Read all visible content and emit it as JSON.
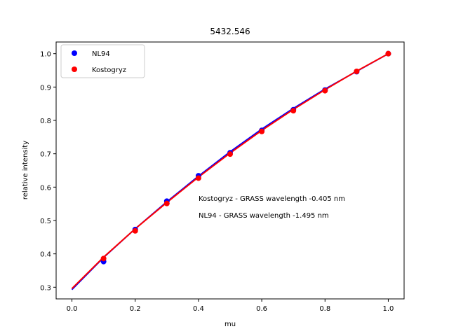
{
  "chart_data": {
    "type": "scatter",
    "title": "5432.546",
    "xlabel": "mu",
    "ylabel": "relative intensity",
    "xlim": [
      -0.05,
      1.05
    ],
    "ylim": [
      0.265,
      1.035
    ],
    "xticks": [
      0.0,
      0.2,
      0.4,
      0.6,
      0.8,
      1.0
    ],
    "xtick_labels": [
      "0.0",
      "0.2",
      "0.4",
      "0.6",
      "0.8",
      "1.0"
    ],
    "yticks": [
      0.3,
      0.4,
      0.5,
      0.6,
      0.7,
      0.8,
      0.9,
      1.0
    ],
    "ytick_labels": [
      "0.3",
      "0.4",
      "0.5",
      "0.6",
      "0.7",
      "0.8",
      "0.9",
      "1.0"
    ],
    "grid": false,
    "legend_position": "top-left",
    "x": [
      0.1,
      0.2,
      0.3,
      0.4,
      0.5,
      0.6,
      0.7,
      0.8,
      0.9,
      1.0
    ],
    "series": [
      {
        "name": "NL94",
        "color": "#0000ff",
        "points": [
          0.377,
          0.473,
          0.558,
          0.634,
          0.703,
          0.77,
          0.832,
          0.891,
          0.946,
          1.0
        ],
        "fit_curve": [
          0.293,
          0.389,
          0.475,
          0.556,
          0.633,
          0.706,
          0.774,
          0.836,
          0.894,
          0.947,
          1.0
        ]
      },
      {
        "name": "Kostogryz",
        "color": "#ff0000",
        "points": [
          0.386,
          0.469,
          0.551,
          0.627,
          0.699,
          0.767,
          0.829,
          0.889,
          0.947,
          1.0
        ],
        "fit_curve": [
          0.296,
          0.39,
          0.475,
          0.554,
          0.63,
          0.702,
          0.77,
          0.833,
          0.892,
          0.948,
          1.0
        ]
      }
    ],
    "fit_x": [
      0.0,
      0.1,
      0.2,
      0.3,
      0.4,
      0.5,
      0.6,
      0.7,
      0.8,
      0.9,
      1.0
    ],
    "annotations": [
      "Kostogryz - GRASS wavelength -0.405 nm",
      "NL94 - GRASS wavelength -1.495 nm"
    ]
  }
}
